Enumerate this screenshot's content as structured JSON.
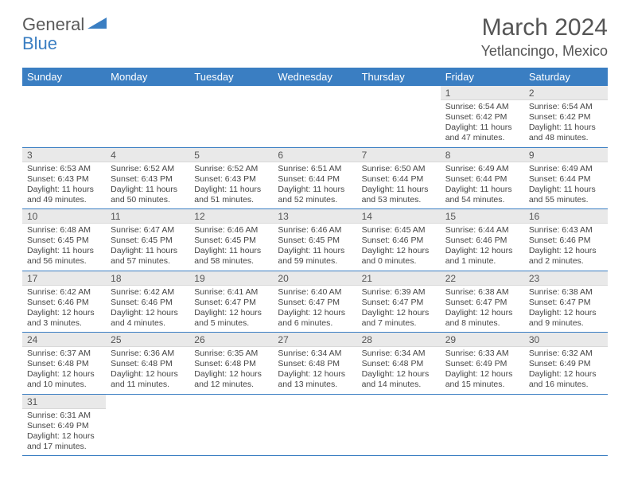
{
  "logo": {
    "text1": "General",
    "text2": "Blue"
  },
  "title": "March 2024",
  "location": "Yetlancingo, Mexico",
  "theme": {
    "header_bg": "#3a7ec2",
    "header_fg": "#ffffff",
    "daynum_bg": "#e9e9e9",
    "row_border": "#3a7ec2",
    "body_text": "#454545"
  },
  "weekdays": [
    "Sunday",
    "Monday",
    "Tuesday",
    "Wednesday",
    "Thursday",
    "Friday",
    "Saturday"
  ],
  "weeks": [
    [
      null,
      null,
      null,
      null,
      null,
      {
        "n": "1",
        "sr": "6:54 AM",
        "ss": "6:42 PM",
        "dl": "11 hours and 47 minutes."
      },
      {
        "n": "2",
        "sr": "6:54 AM",
        "ss": "6:42 PM",
        "dl": "11 hours and 48 minutes."
      }
    ],
    [
      {
        "n": "3",
        "sr": "6:53 AM",
        "ss": "6:43 PM",
        "dl": "11 hours and 49 minutes."
      },
      {
        "n": "4",
        "sr": "6:52 AM",
        "ss": "6:43 PM",
        "dl": "11 hours and 50 minutes."
      },
      {
        "n": "5",
        "sr": "6:52 AM",
        "ss": "6:43 PM",
        "dl": "11 hours and 51 minutes."
      },
      {
        "n": "6",
        "sr": "6:51 AM",
        "ss": "6:44 PM",
        "dl": "11 hours and 52 minutes."
      },
      {
        "n": "7",
        "sr": "6:50 AM",
        "ss": "6:44 PM",
        "dl": "11 hours and 53 minutes."
      },
      {
        "n": "8",
        "sr": "6:49 AM",
        "ss": "6:44 PM",
        "dl": "11 hours and 54 minutes."
      },
      {
        "n": "9",
        "sr": "6:49 AM",
        "ss": "6:44 PM",
        "dl": "11 hours and 55 minutes."
      }
    ],
    [
      {
        "n": "10",
        "sr": "6:48 AM",
        "ss": "6:45 PM",
        "dl": "11 hours and 56 minutes."
      },
      {
        "n": "11",
        "sr": "6:47 AM",
        "ss": "6:45 PM",
        "dl": "11 hours and 57 minutes."
      },
      {
        "n": "12",
        "sr": "6:46 AM",
        "ss": "6:45 PM",
        "dl": "11 hours and 58 minutes."
      },
      {
        "n": "13",
        "sr": "6:46 AM",
        "ss": "6:45 PM",
        "dl": "11 hours and 59 minutes."
      },
      {
        "n": "14",
        "sr": "6:45 AM",
        "ss": "6:46 PM",
        "dl": "12 hours and 0 minutes."
      },
      {
        "n": "15",
        "sr": "6:44 AM",
        "ss": "6:46 PM",
        "dl": "12 hours and 1 minute."
      },
      {
        "n": "16",
        "sr": "6:43 AM",
        "ss": "6:46 PM",
        "dl": "12 hours and 2 minutes."
      }
    ],
    [
      {
        "n": "17",
        "sr": "6:42 AM",
        "ss": "6:46 PM",
        "dl": "12 hours and 3 minutes."
      },
      {
        "n": "18",
        "sr": "6:42 AM",
        "ss": "6:46 PM",
        "dl": "12 hours and 4 minutes."
      },
      {
        "n": "19",
        "sr": "6:41 AM",
        "ss": "6:47 PM",
        "dl": "12 hours and 5 minutes."
      },
      {
        "n": "20",
        "sr": "6:40 AM",
        "ss": "6:47 PM",
        "dl": "12 hours and 6 minutes."
      },
      {
        "n": "21",
        "sr": "6:39 AM",
        "ss": "6:47 PM",
        "dl": "12 hours and 7 minutes."
      },
      {
        "n": "22",
        "sr": "6:38 AM",
        "ss": "6:47 PM",
        "dl": "12 hours and 8 minutes."
      },
      {
        "n": "23",
        "sr": "6:38 AM",
        "ss": "6:47 PM",
        "dl": "12 hours and 9 minutes."
      }
    ],
    [
      {
        "n": "24",
        "sr": "6:37 AM",
        "ss": "6:48 PM",
        "dl": "12 hours and 10 minutes."
      },
      {
        "n": "25",
        "sr": "6:36 AM",
        "ss": "6:48 PM",
        "dl": "12 hours and 11 minutes."
      },
      {
        "n": "26",
        "sr": "6:35 AM",
        "ss": "6:48 PM",
        "dl": "12 hours and 12 minutes."
      },
      {
        "n": "27",
        "sr": "6:34 AM",
        "ss": "6:48 PM",
        "dl": "12 hours and 13 minutes."
      },
      {
        "n": "28",
        "sr": "6:34 AM",
        "ss": "6:48 PM",
        "dl": "12 hours and 14 minutes."
      },
      {
        "n": "29",
        "sr": "6:33 AM",
        "ss": "6:49 PM",
        "dl": "12 hours and 15 minutes."
      },
      {
        "n": "30",
        "sr": "6:32 AM",
        "ss": "6:49 PM",
        "dl": "12 hours and 16 minutes."
      }
    ],
    [
      {
        "n": "31",
        "sr": "6:31 AM",
        "ss": "6:49 PM",
        "dl": "12 hours and 17 minutes."
      },
      null,
      null,
      null,
      null,
      null,
      null
    ]
  ],
  "labels": {
    "sunrise": "Sunrise:",
    "sunset": "Sunset:",
    "daylight": "Daylight:"
  }
}
